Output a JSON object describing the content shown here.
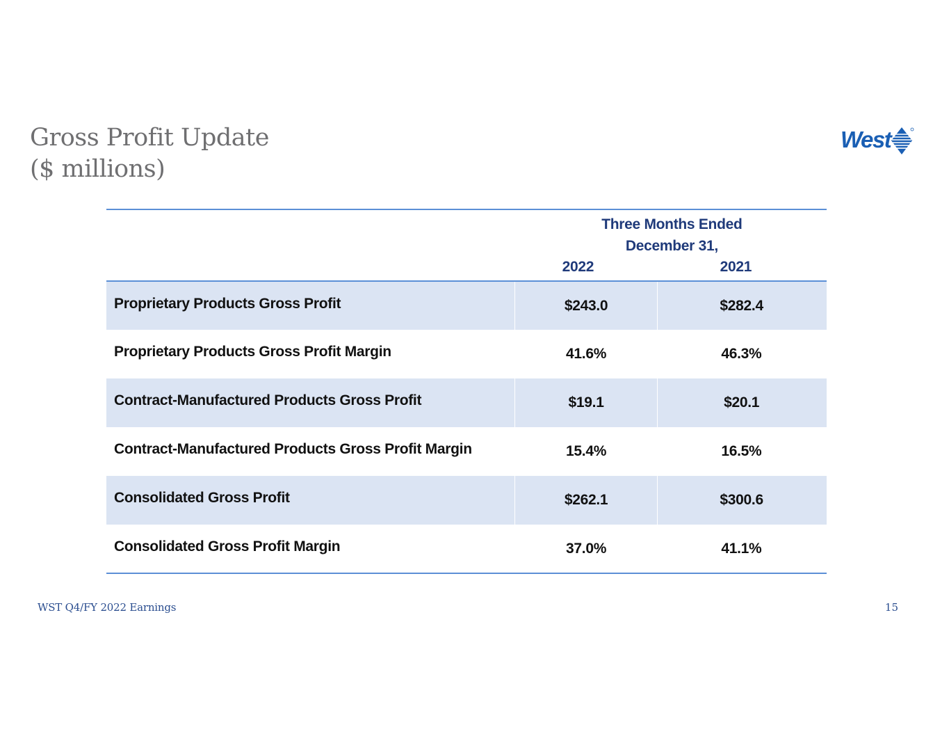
{
  "title": {
    "line1": "Gross Profit Update",
    "line2": "($ millions)"
  },
  "logo": {
    "text": "West",
    "icon": "west-diamond-icon",
    "color": "#1a5fb4"
  },
  "table": {
    "period": {
      "line1": "Three Months Ended",
      "line2": "December 31,"
    },
    "years": [
      "2022",
      "2021"
    ],
    "rows": [
      {
        "label": "Proprietary Products Gross Profit",
        "v2022": "$243.0",
        "v2021": "$282.4"
      },
      {
        "label": "Proprietary Products Gross Profit Margin",
        "v2022": "41.6%",
        "v2021": "46.3%"
      },
      {
        "label": "Contract-Manufactured Products Gross Profit",
        "v2022": "$19.1",
        "v2021": "$20.1"
      },
      {
        "label": "Contract-Manufactured Products Gross Profit Margin",
        "v2022": "15.4%",
        "v2021": "16.5%"
      },
      {
        "label": "Consolidated Gross Profit",
        "v2022": "$262.1",
        "v2021": "$300.6"
      },
      {
        "label": "Consolidated Gross Profit Margin",
        "v2022": "37.0%",
        "v2021": "41.1%"
      }
    ]
  },
  "footer": {
    "left": "WST Q4/FY 2022 Earnings",
    "page": "15"
  },
  "colors": {
    "title": "#6f6f71",
    "header_text": "#1f3a7a",
    "rule": "#5b8fd6",
    "row_shade": "#dbe4f3",
    "footer_text": "#2a4d8f"
  }
}
